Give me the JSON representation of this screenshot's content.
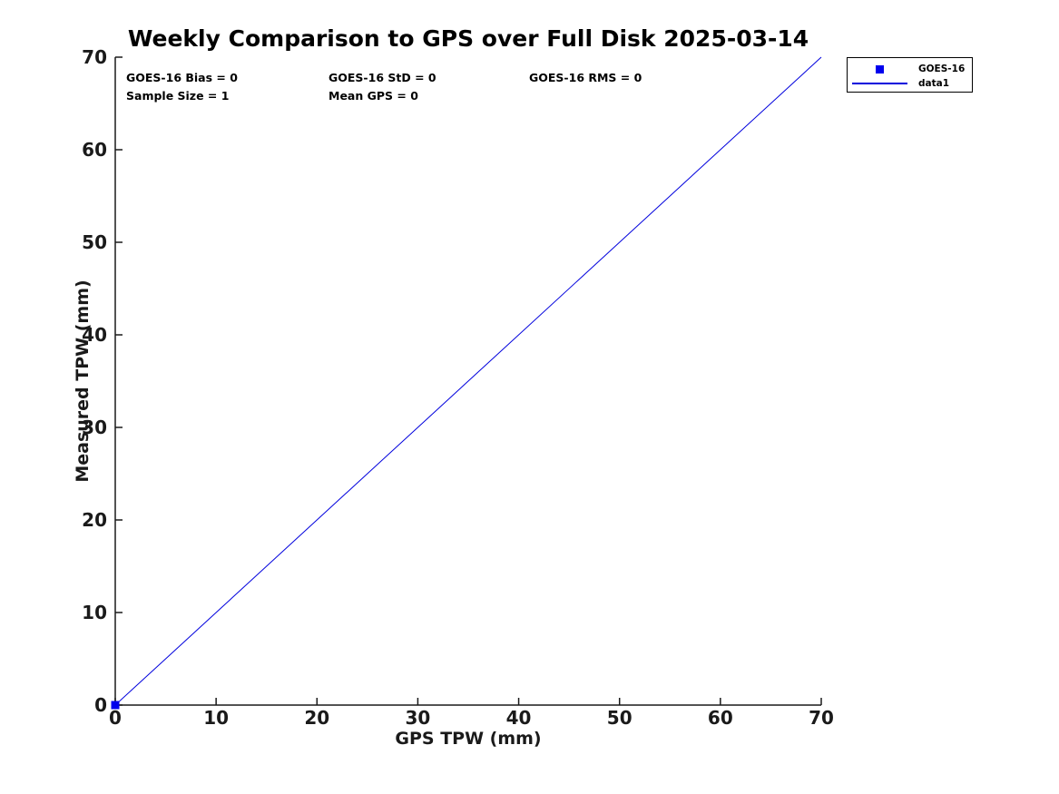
{
  "chart_data": {
    "type": "line",
    "title": "Weekly Comparison to GPS over Full Disk 2025-03-14",
    "xlabel": "GPS TPW (mm)",
    "ylabel": "Measured TPW (mm)",
    "xlim": [
      0,
      70
    ],
    "ylim": [
      0,
      70
    ],
    "xticks": [
      0,
      10,
      20,
      30,
      40,
      50,
      60,
      70
    ],
    "yticks": [
      0,
      10,
      20,
      30,
      40,
      50,
      60,
      70
    ],
    "grid": false,
    "legend_position": "top-right-outside",
    "series": [
      {
        "name": "GOES-16",
        "type": "scatter",
        "marker": "square",
        "color": "#0000EE",
        "x": [
          0
        ],
        "y": [
          0
        ]
      },
      {
        "name": "data1",
        "type": "line",
        "color": "#0000DD",
        "x": [
          0,
          70
        ],
        "y": [
          0,
          70
        ]
      }
    ],
    "annotations": [
      "GOES-16 Bias = 0",
      "GOES-16 StD = 0",
      "GOES-16 RMS = 0",
      "Sample Size = 1",
      "Mean GPS = 0"
    ]
  },
  "annotations": {
    "bias": "GOES-16 Bias = 0",
    "std": "GOES-16 StD = 0",
    "rms": "GOES-16 RMS = 0",
    "sample_size": "Sample Size = 1",
    "mean_gps": "Mean GPS = 0"
  },
  "legend": {
    "entries": [
      {
        "label": "GOES-16",
        "marker": "square",
        "color": "#0000EE"
      },
      {
        "label": "data1",
        "marker": "line",
        "color": "#0000DD"
      }
    ]
  },
  "colors": {
    "series_blue": "#0000EE",
    "axis": "#1a1a1a",
    "background": "#ffffff"
  }
}
